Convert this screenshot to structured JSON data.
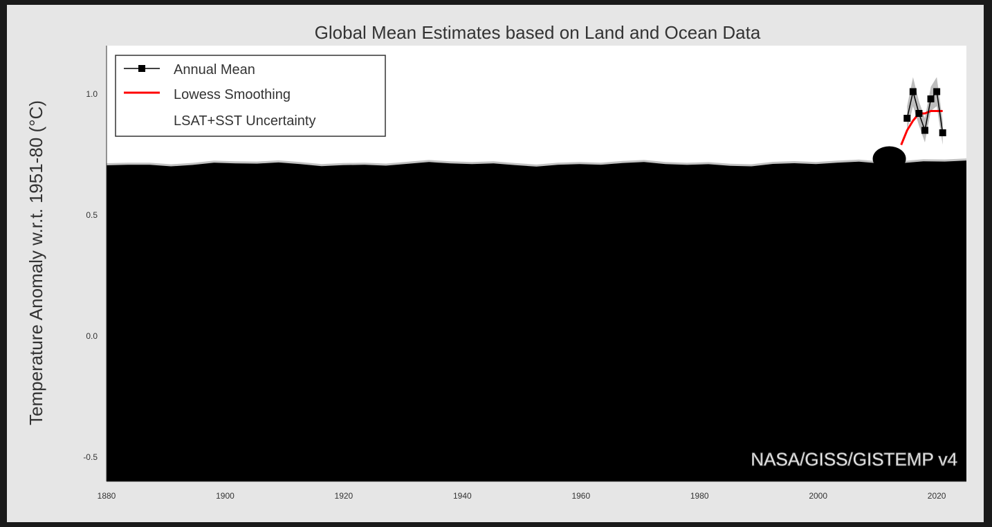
{
  "chart_data": {
    "type": "line",
    "title": "Global Mean Estimates based on Land and Ocean Data",
    "ylabel": "Temperature Anomaly w.r.t. 1951-80 (°C)",
    "xlabel": "",
    "xlim": [
      1880,
      2025
    ],
    "ylim": [
      -0.6,
      1.2
    ],
    "x_ticks": [
      "1880",
      "1900",
      "1920",
      "1940",
      "1960",
      "1980",
      "2000",
      "2020"
    ],
    "y_ticks": [
      "-0.5",
      "0.0",
      "0.5",
      "1.0"
    ],
    "grid": false,
    "legend_position": "top-left",
    "legend": [
      "Annual Mean",
      "Lowess Smoothing",
      "LSAT+SST Uncertainty"
    ],
    "series": [
      {
        "name": "Annual Mean",
        "color": "#000000",
        "marker": "square",
        "x": [
          2015,
          2016,
          2017,
          2018,
          2019,
          2020,
          2021
        ],
        "y": [
          0.9,
          1.01,
          0.92,
          0.85,
          0.98,
          1.01,
          0.84
        ]
      },
      {
        "name": "Lowess Smoothing",
        "color": "#ff0000",
        "x": [
          2014,
          2015,
          2016,
          2017,
          2018,
          2019,
          2020,
          2021
        ],
        "y": [
          0.79,
          0.85,
          0.89,
          0.92,
          0.92,
          0.93,
          0.93,
          0.93
        ]
      },
      {
        "name": "LSAT+SST Uncertainty",
        "color": "#bdbdbd",
        "x": [
          2015,
          2016,
          2017,
          2018,
          2019,
          2020,
          2021
        ],
        "upper": [
          0.95,
          1.07,
          0.97,
          0.9,
          1.03,
          1.07,
          0.89
        ],
        "lower": [
          0.85,
          0.95,
          0.87,
          0.8,
          0.93,
          0.95,
          0.79
        ]
      }
    ],
    "obscured_region": {
      "color": "#000000",
      "x_range": [
        1880,
        2025
      ],
      "y_top": 0.71
    },
    "watermark": "NASA/GISS/GISTEMP v4"
  }
}
